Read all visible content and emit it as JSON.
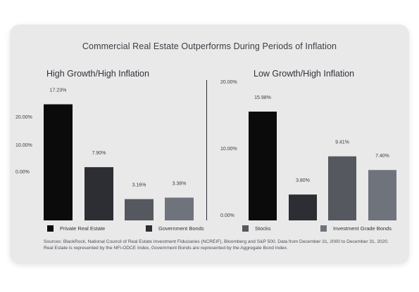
{
  "title": "Commercial Real Estate Outperforms During Periods of Inflation",
  "colors": {
    "private_real_estate": "#0b0b0c",
    "government_bonds": "#2c2e33",
    "stocks": "#56585f",
    "investment_grade_bonds": "#6f737c"
  },
  "chart_data": [
    {
      "type": "bar",
      "title": "High Growth/High Inflation",
      "categories": [
        "Private Real Estate",
        "Government Bonds",
        "Stocks",
        "Investment Grade Bonds"
      ],
      "values": [
        17.23,
        7.9,
        3.16,
        3.38
      ],
      "data_labels": [
        "17.23%",
        "7.90%",
        "3.16%",
        "3.38%"
      ],
      "ytick_labels": [
        "0.00%",
        "10.00%",
        "20.00%"
      ],
      "grid": false
    },
    {
      "type": "bar",
      "title": "Low Growth/High Inflation",
      "categories": [
        "Private Real Estate",
        "Government Bonds",
        "Stocks",
        "Investment Grade Bonds"
      ],
      "values": [
        15.98,
        3.8,
        9.41,
        7.4
      ],
      "data_labels": [
        "15.98%",
        "3.80%",
        "9.41%",
        "7.40%"
      ],
      "ytick_labels": [
        "0.00%",
        "10.00%",
        "20.00%"
      ],
      "ylim": [
        0,
        20
      ],
      "grid": false
    }
  ],
  "legend": [
    {
      "label": "Private Real Estate",
      "color": "#0b0b0c"
    },
    {
      "label": "Government Bonds",
      "color": "#2c2e33"
    },
    {
      "label": "Stocks",
      "color": "#56585f"
    },
    {
      "label": "Investment Grade Bonds",
      "color": "#6f737c"
    }
  ],
  "sources": "Sources: BlackRock, National Council of Real Estate Investment Fiduciaries (NCREIF), Bloomberg and S&P 500. Data from December 31, 2000 to December 31, 2020. Real Estate is represented by the NFI-ODCE Index, Government Bonds are represented by the Aggregate Bond Index."
}
